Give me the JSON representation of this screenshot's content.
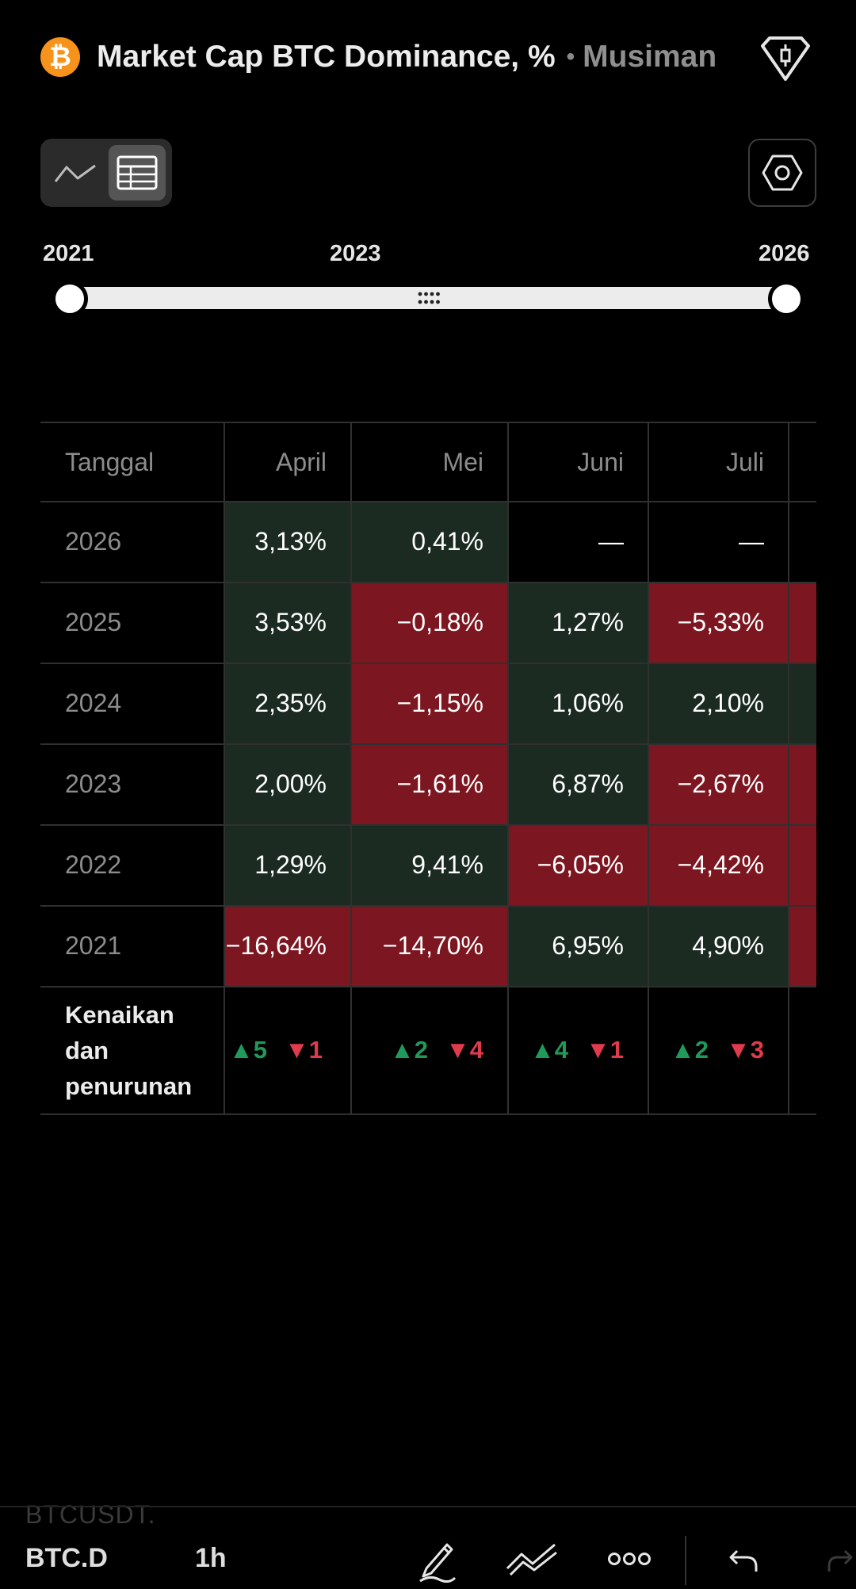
{
  "header": {
    "logo_symbol": "₿",
    "title": "Market Cap BTC Dominance, %",
    "separator": "•",
    "subtitle": "Musiman",
    "icons": {
      "logo": "bitcoin-logo-icon",
      "right": "candlestick-tag-icon"
    }
  },
  "controls": {
    "view_toggle": [
      "line-chart-icon",
      "table-icon"
    ],
    "active_view": "table",
    "settings_icon": "hexagon-settings-icon"
  },
  "range": {
    "start_label": "2021",
    "mid_label": "2023",
    "end_label": "2026"
  },
  "table": {
    "header": [
      "Tanggal",
      "April",
      "Mei",
      "Juni",
      "Juli"
    ],
    "rows": [
      {
        "year": "2026",
        "cells": [
          {
            "v": "3,13%",
            "s": "pos"
          },
          {
            "v": "0,41%",
            "s": "pos"
          },
          {
            "v": "—",
            "s": "none"
          },
          {
            "v": "—",
            "s": "none"
          },
          {
            "v": "",
            "s": "none"
          }
        ]
      },
      {
        "year": "2025",
        "cells": [
          {
            "v": "3,53%",
            "s": "pos"
          },
          {
            "v": "−0,18%",
            "s": "neg"
          },
          {
            "v": "1,27%",
            "s": "pos"
          },
          {
            "v": "−5,33%",
            "s": "neg"
          },
          {
            "v": "",
            "s": "neg"
          }
        ]
      },
      {
        "year": "2024",
        "cells": [
          {
            "v": "2,35%",
            "s": "pos"
          },
          {
            "v": "−1,15%",
            "s": "neg"
          },
          {
            "v": "1,06%",
            "s": "pos"
          },
          {
            "v": "2,10%",
            "s": "pos"
          },
          {
            "v": "",
            "s": "pos"
          }
        ]
      },
      {
        "year": "2023",
        "cells": [
          {
            "v": "2,00%",
            "s": "pos"
          },
          {
            "v": "−1,61%",
            "s": "neg"
          },
          {
            "v": "6,87%",
            "s": "pos"
          },
          {
            "v": "−2,67%",
            "s": "neg"
          },
          {
            "v": "",
            "s": "neg"
          }
        ]
      },
      {
        "year": "2022",
        "cells": [
          {
            "v": "1,29%",
            "s": "pos"
          },
          {
            "v": "9,41%",
            "s": "pos"
          },
          {
            "v": "−6,05%",
            "s": "neg"
          },
          {
            "v": "−4,42%",
            "s": "neg"
          },
          {
            "v": "",
            "s": "neg"
          }
        ]
      },
      {
        "year": "2021",
        "cells": [
          {
            "v": "−16,64%",
            "s": "neg"
          },
          {
            "v": "−14,70%",
            "s": "neg"
          },
          {
            "v": "6,95%",
            "s": "pos"
          },
          {
            "v": "4,90%",
            "s": "pos"
          },
          {
            "v": "",
            "s": "neg"
          }
        ]
      }
    ],
    "summary": {
      "label": "Kenaikan dan penurunan",
      "counts": [
        {
          "up": "▲5",
          "down": "▼1"
        },
        {
          "up": "▲2",
          "down": "▼4"
        },
        {
          "up": "▲4",
          "down": "▼1"
        },
        {
          "up": "▲2",
          "down": "▼3"
        }
      ]
    },
    "colors": {
      "positive": "#1b2b22",
      "negative": "#7c1620",
      "up": "#1f9a5a",
      "down": "#e03b4c"
    }
  },
  "toolbar": {
    "ghost_text": "BTCUSDT.",
    "symbol": "BTC.D",
    "timeframe": "1h",
    "icons": [
      "draw-pen-icon",
      "trend-lines-icon",
      "more-dots-icon",
      "undo-icon",
      "redo-icon"
    ]
  }
}
